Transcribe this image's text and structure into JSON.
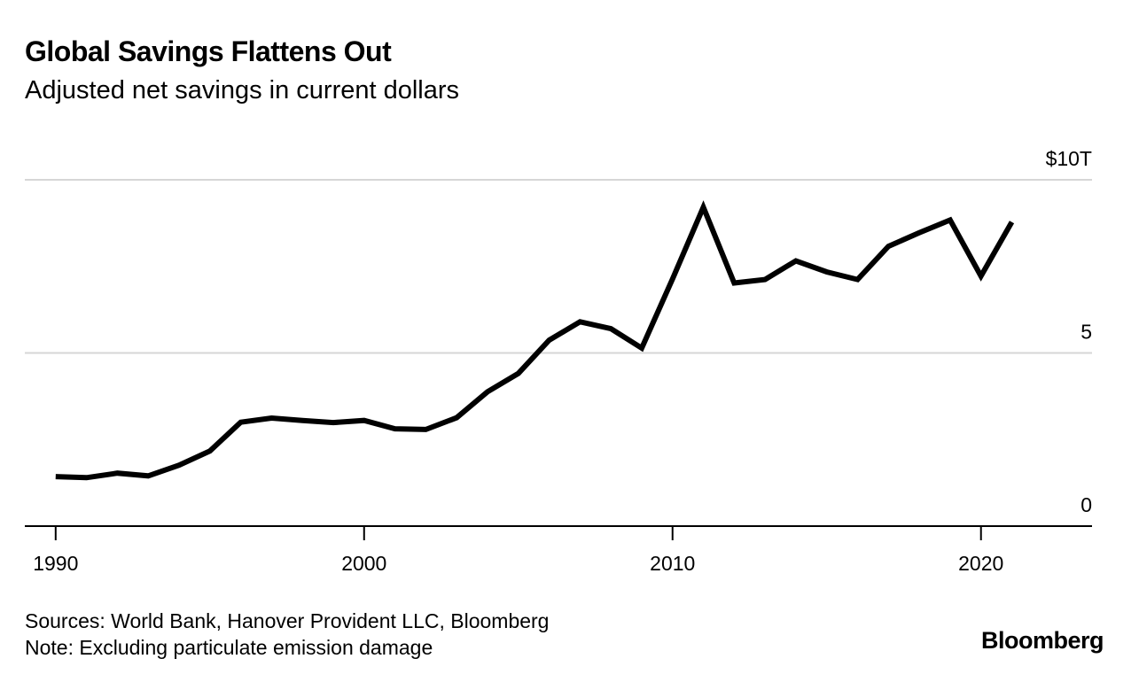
{
  "title": "Global Savings Flattens Out",
  "subtitle": "Adjusted net savings in current dollars",
  "sources": "Sources: World Bank, Hanover Provident LLC, Bloomberg",
  "note": "Note: Excluding particulate emission damage",
  "brand": "Bloomberg",
  "chart_data": {
    "type": "line",
    "title": "Global Savings Flattens Out",
    "subtitle": "Adjusted net savings in current dollars",
    "xlabel": "",
    "ylabel": "",
    "xlim": [
      1989,
      2023.6
    ],
    "ylim": [
      0,
      10
    ],
    "x_ticks": [
      {
        "value": 1990,
        "label": "1990"
      },
      {
        "value": 2000,
        "label": "2000"
      },
      {
        "value": 2010,
        "label": "2010"
      },
      {
        "value": 2020,
        "label": "2020"
      }
    ],
    "y_ticks": [
      {
        "value": 0,
        "label": "0"
      },
      {
        "value": 5,
        "label": "5"
      },
      {
        "value": 10,
        "label": "$10T"
      }
    ],
    "grid": true,
    "line_color": "#000000",
    "series": [
      {
        "name": "Adjusted net savings",
        "x": [
          1990,
          1991,
          1992,
          1993,
          1994,
          1995,
          1996,
          1997,
          1998,
          1999,
          2000,
          2001,
          2002,
          2003,
          2004,
          2005,
          2006,
          2007,
          2008,
          2009,
          2010,
          2011,
          2012,
          2013,
          2014,
          2015,
          2016,
          2017,
          2018,
          2019,
          2020,
          2021
        ],
        "values": [
          1.43,
          1.4,
          1.53,
          1.45,
          1.76,
          2.17,
          3.0,
          3.12,
          3.05,
          2.99,
          3.05,
          2.81,
          2.79,
          3.13,
          3.88,
          4.41,
          5.37,
          5.9,
          5.7,
          5.14,
          7.14,
          9.21,
          7.02,
          7.12,
          7.66,
          7.34,
          7.12,
          8.08,
          8.47,
          8.84,
          7.22,
          8.78
        ]
      }
    ]
  }
}
